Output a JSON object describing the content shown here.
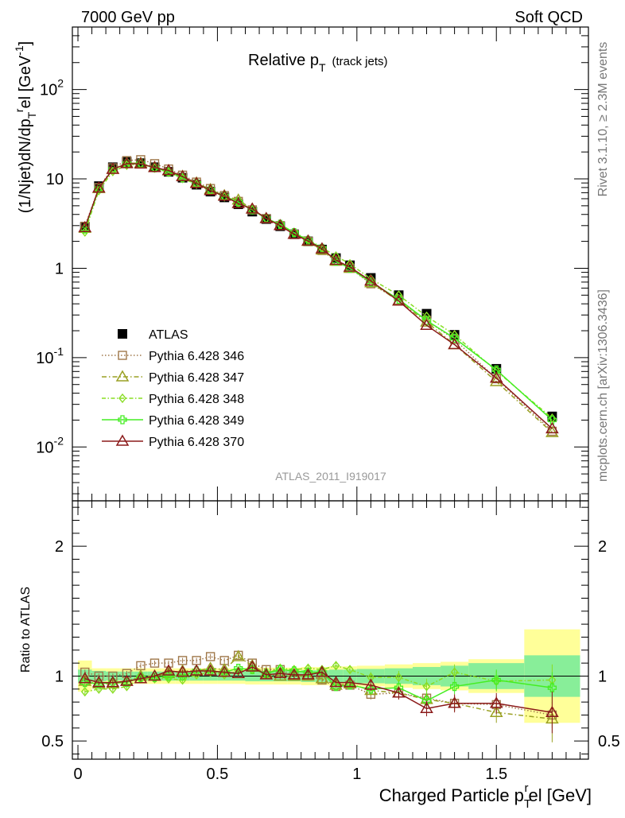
{
  "header": {
    "left": "7000 GeV pp",
    "right": "Soft QCD"
  },
  "side_labels": {
    "rivet": "Rivet 3.1.10, ≥ 2.3M events",
    "mcplots": "mcplots.cern.ch [arXiv:1306.3436]"
  },
  "chart_data": [
    {
      "type": "scatter",
      "panel": "main",
      "title_main": "Relative p",
      "title_sub": "T",
      "title_suffix": "(track jets)",
      "analysis_id": "ATLAS_2011_I919017",
      "ylabel_main": "(1/Njet)dN/dp",
      "ylabel_sub": "T",
      "ylabel_sup": "r",
      "ylabel_end": "el [GeV",
      "ylabel_unit_sup": "-1",
      "ylabel_close": "]",
      "yscale": "log",
      "xlim": [
        -0.02,
        1.83
      ],
      "ylim": [
        0.0025,
        500
      ],
      "y_ticks": [
        {
          "base": "10",
          "exp": "-2",
          "value": 0.01
        },
        {
          "base": "10",
          "exp": "-1",
          "value": 0.1
        },
        {
          "base": "1",
          "exp": "",
          "value": 1
        },
        {
          "base": "10",
          "exp": "",
          "value": 10
        },
        {
          "base": "10",
          "exp": "2",
          "value": 100
        }
      ],
      "legend_position": "middle-left",
      "x": [
        0.025,
        0.075,
        0.125,
        0.175,
        0.225,
        0.275,
        0.325,
        0.375,
        0.425,
        0.475,
        0.525,
        0.575,
        0.625,
        0.675,
        0.725,
        0.775,
        0.825,
        0.875,
        0.925,
        0.975,
        1.05,
        1.15,
        1.25,
        1.35,
        1.5,
        1.7
      ],
      "series": [
        {
          "name": "ATLAS",
          "color": "#000000",
          "marker": "square-filled",
          "dash": "none",
          "values": [
            2.9,
            8.3,
            13.5,
            15.5,
            15.0,
            13.5,
            12.0,
            10.3,
            8.6,
            7.2,
            6.2,
            5.2,
            4.3,
            3.55,
            2.95,
            2.4,
            2.0,
            1.62,
            1.3,
            1.08,
            0.78,
            0.5,
            0.31,
            0.18,
            0.075,
            0.022
          ]
        },
        {
          "name": "Pythia 6.428 346",
          "color": "#a0784b",
          "marker": "square-open",
          "dash": "1.5,2.5",
          "values": [
            2.95,
            8.0,
            13.3,
            16.0,
            16.4,
            14.8,
            12.9,
            11.0,
            9.2,
            7.8,
            6.5,
            5.6,
            4.5,
            3.6,
            3.0,
            2.4,
            2.0,
            1.58,
            1.2,
            1.0,
            0.67,
            0.44,
            0.26,
            0.16,
            0.058,
            0.015
          ]
        },
        {
          "name": "Pythia 6.428 347",
          "color": "#9aa023",
          "marker": "triangle-open",
          "dash": "6,3,1.5,3",
          "values": [
            2.8,
            7.8,
            12.8,
            15.0,
            15.0,
            13.5,
            12.3,
            10.7,
            9.0,
            7.6,
            6.5,
            5.8,
            4.6,
            3.6,
            3.0,
            2.4,
            2.0,
            1.6,
            1.2,
            1.0,
            0.69,
            0.43,
            0.25,
            0.14,
            0.054,
            0.0145
          ]
        },
        {
          "name": "Pythia 6.428 348",
          "color": "#88dd22",
          "marker": "diamond-open",
          "dash": "5,2.5,1.5,2.5",
          "values": [
            2.55,
            7.4,
            12.1,
            14.2,
            14.7,
            13.2,
            11.8,
            10.1,
            8.7,
            7.4,
            6.3,
            5.4,
            4.5,
            3.6,
            3.1,
            2.5,
            2.1,
            1.7,
            1.37,
            1.12,
            0.76,
            0.5,
            0.29,
            0.18,
            0.071,
            0.021
          ]
        },
        {
          "name": "Pythia 6.428 349",
          "color": "#44ee22",
          "marker": "plus-open",
          "dash": "none",
          "values": [
            2.75,
            7.8,
            12.8,
            14.8,
            14.8,
            13.3,
            12.0,
            10.3,
            8.9,
            7.5,
            6.4,
            5.5,
            4.5,
            3.6,
            3.1,
            2.5,
            2.05,
            1.67,
            1.2,
            1.0,
            0.7,
            0.45,
            0.26,
            0.165,
            0.073,
            0.02
          ]
        },
        {
          "name": "Pythia 6.428 370",
          "color": "#8b1a1a",
          "marker": "triangle-open",
          "dash": "none",
          "values": [
            2.85,
            7.9,
            12.8,
            14.8,
            14.7,
            13.4,
            12.4,
            10.6,
            8.9,
            7.4,
            6.4,
            5.3,
            4.6,
            3.6,
            3.0,
            2.4,
            2.02,
            1.65,
            1.23,
            1.03,
            0.72,
            0.43,
            0.23,
            0.14,
            0.059,
            0.016
          ]
        }
      ]
    },
    {
      "type": "scatter",
      "panel": "ratio",
      "ylabel": "Ratio to ATLAS",
      "xlabel_main": "Charged Particle p",
      "xlabel_sub": "T",
      "xlabel_sup": "r",
      "xlabel_end": "el [GeV]",
      "xlim": [
        -0.02,
        1.83
      ],
      "ylim": [
        0.36,
        2.35
      ],
      "x_ticks": [
        {
          "label": "0",
          "value": 0
        },
        {
          "label": "0.5",
          "value": 0.5
        },
        {
          "label": "1",
          "value": 1
        },
        {
          "label": "1.5",
          "value": 1.5
        }
      ],
      "y_ticks": [
        {
          "label": "0.5",
          "value": 0.5
        },
        {
          "label": "1",
          "value": 1
        },
        {
          "label": "2",
          "value": 2
        }
      ],
      "band_colors": {
        "stat": "#88ee99",
        "total": "#ffff99"
      },
      "band_bins": [
        {
          "lo": 0.0,
          "hi": 0.05,
          "stat": 0.05,
          "total": 0.12
        },
        {
          "lo": 0.05,
          "hi": 0.1,
          "stat": 0.04,
          "total": 0.06
        },
        {
          "lo": 0.1,
          "hi": 0.15,
          "stat": 0.035,
          "total": 0.06
        },
        {
          "lo": 0.15,
          "hi": 0.2,
          "stat": 0.035,
          "total": 0.06
        },
        {
          "lo": 0.2,
          "hi": 0.25,
          "stat": 0.035,
          "total": 0.06
        },
        {
          "lo": 0.25,
          "hi": 0.3,
          "stat": 0.035,
          "total": 0.06
        },
        {
          "lo": 0.3,
          "hi": 0.35,
          "stat": 0.035,
          "total": 0.06
        },
        {
          "lo": 0.35,
          "hi": 0.4,
          "stat": 0.035,
          "total": 0.06
        },
        {
          "lo": 0.4,
          "hi": 0.45,
          "stat": 0.035,
          "total": 0.06
        },
        {
          "lo": 0.45,
          "hi": 0.5,
          "stat": 0.035,
          "total": 0.06
        },
        {
          "lo": 0.5,
          "hi": 0.55,
          "stat": 0.035,
          "total": 0.06
        },
        {
          "lo": 0.55,
          "hi": 0.6,
          "stat": 0.035,
          "total": 0.06
        },
        {
          "lo": 0.6,
          "hi": 0.65,
          "stat": 0.04,
          "total": 0.065
        },
        {
          "lo": 0.65,
          "hi": 0.7,
          "stat": 0.04,
          "total": 0.065
        },
        {
          "lo": 0.7,
          "hi": 0.75,
          "stat": 0.04,
          "total": 0.065
        },
        {
          "lo": 0.75,
          "hi": 0.8,
          "stat": 0.04,
          "total": 0.065
        },
        {
          "lo": 0.8,
          "hi": 0.85,
          "stat": 0.045,
          "total": 0.07
        },
        {
          "lo": 0.85,
          "hi": 0.9,
          "stat": 0.045,
          "total": 0.07
        },
        {
          "lo": 0.9,
          "hi": 0.95,
          "stat": 0.05,
          "total": 0.075
        },
        {
          "lo": 0.95,
          "hi": 1.0,
          "stat": 0.05,
          "total": 0.075
        },
        {
          "lo": 1.0,
          "hi": 1.1,
          "stat": 0.055,
          "total": 0.08
        },
        {
          "lo": 1.1,
          "hi": 1.2,
          "stat": 0.06,
          "total": 0.09
        },
        {
          "lo": 1.2,
          "hi": 1.3,
          "stat": 0.07,
          "total": 0.1
        },
        {
          "lo": 1.3,
          "hi": 1.4,
          "stat": 0.08,
          "total": 0.11
        },
        {
          "lo": 1.4,
          "hi": 1.6,
          "stat": 0.1,
          "total": 0.13
        },
        {
          "lo": 1.6,
          "hi": 1.8,
          "stat": 0.16,
          "total": 0.36
        }
      ],
      "x": [
        0.025,
        0.075,
        0.125,
        0.175,
        0.225,
        0.275,
        0.325,
        0.375,
        0.425,
        0.475,
        0.525,
        0.575,
        0.625,
        0.675,
        0.725,
        0.775,
        0.825,
        0.875,
        0.925,
        0.975,
        1.05,
        1.15,
        1.25,
        1.35,
        1.5,
        1.7
      ],
      "series": [
        {
          "name": "Pythia 6.428 346",
          "color": "#a0784b",
          "marker": "square-open",
          "dash": "1.5,2.5",
          "values": [
            1.03,
            1.0,
            1.0,
            1.02,
            1.08,
            1.1,
            1.1,
            1.12,
            1.12,
            1.15,
            1.12,
            1.16,
            1.1,
            1.05,
            1.05,
            1.0,
            1.0,
            0.97,
            0.92,
            0.93,
            0.86,
            0.87,
            0.83,
            0.79,
            0.78,
            0.7
          ],
          "errors": [
            0.02,
            0.02,
            0.02,
            0.02,
            0.02,
            0.02,
            0.02,
            0.02,
            0.02,
            0.02,
            0.02,
            0.02,
            0.02,
            0.03,
            0.03,
            0.03,
            0.03,
            0.03,
            0.03,
            0.03,
            0.04,
            0.05,
            0.06,
            0.06,
            0.07,
            0.1
          ]
        },
        {
          "name": "Pythia 6.428 347",
          "color": "#9aa023",
          "marker": "triangle-open",
          "dash": "6,3,1.5,3",
          "values": [
            0.96,
            0.94,
            0.94,
            0.96,
            1.0,
            1.0,
            1.02,
            1.04,
            1.04,
            1.06,
            1.05,
            1.15,
            1.08,
            1.02,
            1.0,
            1.0,
            1.0,
            0.98,
            0.93,
            0.94,
            0.89,
            0.87,
            0.82,
            0.79,
            0.72,
            0.67
          ],
          "errors": [
            0.02,
            0.02,
            0.02,
            0.02,
            0.02,
            0.02,
            0.02,
            0.02,
            0.02,
            0.02,
            0.02,
            0.02,
            0.02,
            0.03,
            0.03,
            0.03,
            0.03,
            0.03,
            0.03,
            0.03,
            0.04,
            0.05,
            0.06,
            0.06,
            0.08,
            0.18
          ]
        },
        {
          "name": "Pythia 6.428 348",
          "color": "#88dd22",
          "marker": "diamond-open",
          "dash": "5,2.5,1.5,2.5",
          "values": [
            0.88,
            0.9,
            0.9,
            0.92,
            0.98,
            0.98,
            0.98,
            0.97,
            1.01,
            1.03,
            1.01,
            1.04,
            1.05,
            1.02,
            1.06,
            1.05,
            1.06,
            1.05,
            1.08,
            1.05,
            0.99,
            0.99,
            0.92,
            1.03,
            0.96,
            0.97
          ],
          "errors": [
            0.02,
            0.02,
            0.02,
            0.02,
            0.02,
            0.02,
            0.02,
            0.02,
            0.02,
            0.02,
            0.02,
            0.02,
            0.02,
            0.03,
            0.03,
            0.03,
            0.03,
            0.03,
            0.03,
            0.03,
            0.04,
            0.05,
            0.06,
            0.06,
            0.08,
            0.12
          ]
        },
        {
          "name": "Pythia 6.428 349",
          "color": "#44ee22",
          "marker": "plus-open",
          "dash": "none",
          "values": [
            0.95,
            0.94,
            0.95,
            0.95,
            0.99,
            0.99,
            1.0,
            1.0,
            1.04,
            1.04,
            1.03,
            1.06,
            1.05,
            1.02,
            1.05,
            1.04,
            1.03,
            1.03,
            0.92,
            0.93,
            0.9,
            0.91,
            0.81,
            0.92,
            0.97,
            0.91
          ],
          "errors": [
            0.02,
            0.02,
            0.02,
            0.02,
            0.02,
            0.02,
            0.02,
            0.02,
            0.02,
            0.02,
            0.02,
            0.02,
            0.02,
            0.03,
            0.03,
            0.03,
            0.03,
            0.03,
            0.03,
            0.03,
            0.04,
            0.05,
            0.06,
            0.06,
            0.08,
            0.12
          ]
        },
        {
          "name": "Pythia 6.428 370",
          "color": "#8b1a1a",
          "marker": "triangle-open",
          "dash": "none",
          "values": [
            0.98,
            0.95,
            0.95,
            0.96,
            0.98,
            1.0,
            1.04,
            1.03,
            1.04,
            1.04,
            1.03,
            1.02,
            1.07,
            1.01,
            1.02,
            1.01,
            1.01,
            1.03,
            0.95,
            0.95,
            0.93,
            0.87,
            0.75,
            0.79,
            0.79,
            0.72
          ],
          "errors": [
            0.02,
            0.02,
            0.02,
            0.02,
            0.02,
            0.02,
            0.02,
            0.02,
            0.02,
            0.02,
            0.02,
            0.02,
            0.02,
            0.03,
            0.03,
            0.03,
            0.03,
            0.03,
            0.03,
            0.03,
            0.04,
            0.05,
            0.06,
            0.07,
            0.08,
            0.16
          ]
        }
      ]
    }
  ]
}
